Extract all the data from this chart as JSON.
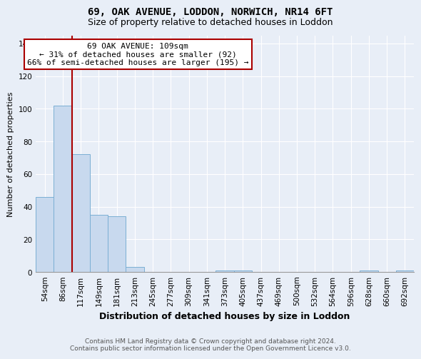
{
  "title_line1": "69, OAK AVENUE, LODDON, NORWICH, NR14 6FT",
  "title_line2": "Size of property relative to detached houses in Loddon",
  "xlabel": "Distribution of detached houses by size in Loddon",
  "ylabel": "Number of detached properties",
  "categories": [
    "54sqm",
    "86sqm",
    "117sqm",
    "149sqm",
    "181sqm",
    "213sqm",
    "245sqm",
    "277sqm",
    "309sqm",
    "341sqm",
    "373sqm",
    "405sqm",
    "437sqm",
    "469sqm",
    "500sqm",
    "532sqm",
    "564sqm",
    "596sqm",
    "628sqm",
    "660sqm",
    "692sqm"
  ],
  "values": [
    46,
    102,
    72,
    35,
    34,
    3,
    0,
    0,
    0,
    0,
    1,
    1,
    0,
    0,
    0,
    0,
    0,
    0,
    1,
    0,
    1
  ],
  "bar_color": "#c8d9ee",
  "bar_edge_color": "#7bafd4",
  "ylim": [
    0,
    145
  ],
  "yticks": [
    0,
    20,
    40,
    60,
    80,
    100,
    120,
    140
  ],
  "property_bin_index": 1,
  "vline_color": "#aa0000",
  "annotation_text": "69 OAK AVENUE: 109sqm\n← 31% of detached houses are smaller (92)\n66% of semi-detached houses are larger (195) →",
  "annotation_box_color": "#ffffff",
  "annotation_box_edge": "#aa0000",
  "footer_line1": "Contains HM Land Registry data © Crown copyright and database right 2024.",
  "footer_line2": "Contains public sector information licensed under the Open Government Licence v3.0.",
  "bg_color": "#e8eef7",
  "plot_bg_color": "#e8eef7",
  "grid_color": "#ffffff",
  "title1_fontsize": 10,
  "title2_fontsize": 9,
  "xlabel_fontsize": 9,
  "ylabel_fontsize": 8,
  "tick_fontsize": 7.5,
  "annotation_fontsize": 8,
  "footer_fontsize": 6.5
}
